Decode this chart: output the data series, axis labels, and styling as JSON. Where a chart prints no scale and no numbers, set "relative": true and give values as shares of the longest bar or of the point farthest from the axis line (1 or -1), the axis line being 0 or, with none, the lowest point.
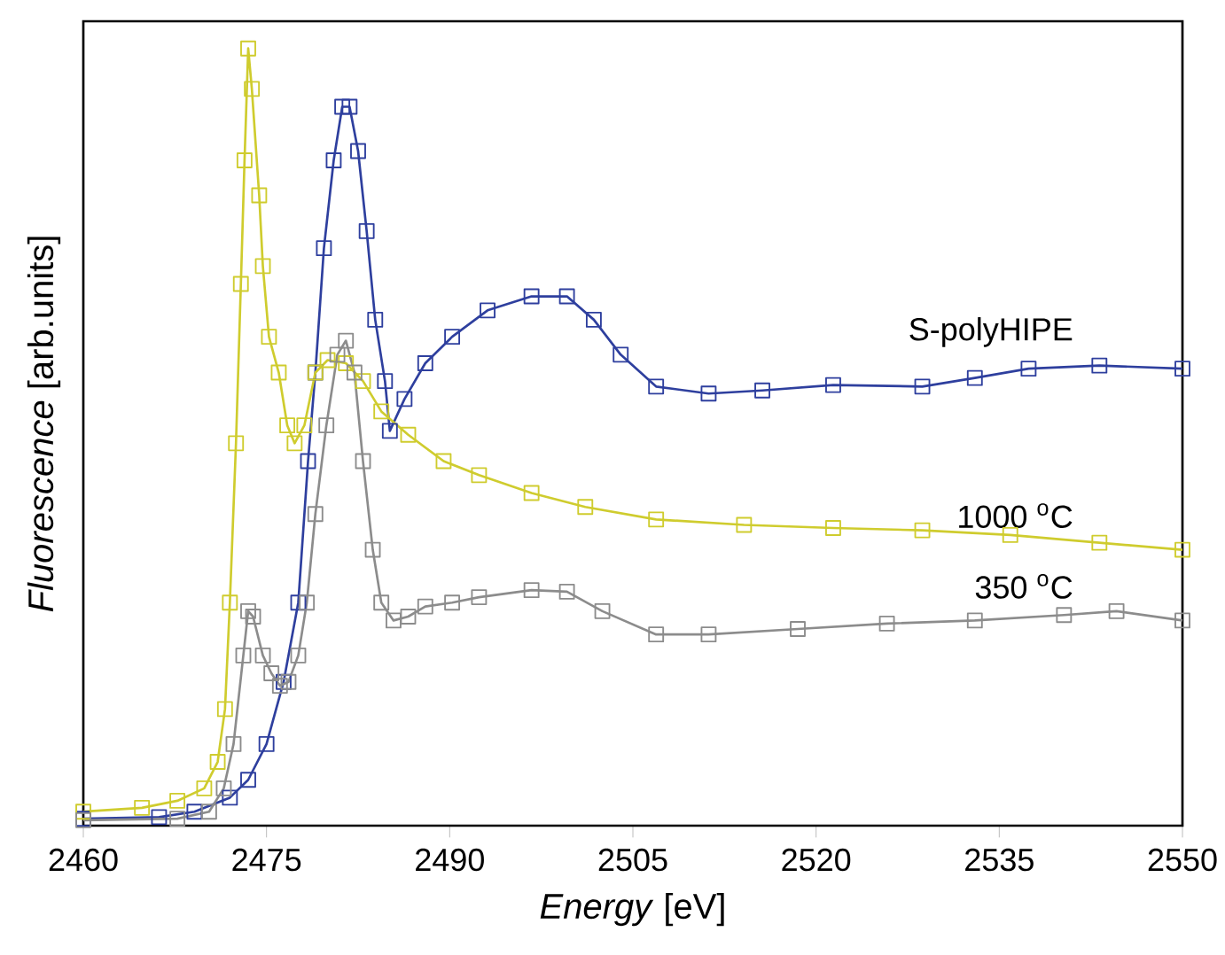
{
  "chart_data": {
    "type": "line",
    "relative": true,
    "xlabel": "*Energy* [eV]",
    "ylabel": "*Fluorescence* [arb.units]",
    "xlim": [
      2460,
      2550
    ],
    "xticks": [
      2460,
      2475,
      2490,
      2505,
      2520,
      2535,
      2550
    ],
    "marker": "square",
    "line_style": "solid",
    "tick_labels": "x",
    "series": [
      {
        "name": "S-polyHIPE",
        "color": "#2e3f9e",
        "x": [
          2460,
          2466.2,
          2469.1,
          2472.0,
          2473.5,
          2475.0,
          2476.4,
          2477.6,
          2478.4,
          2479.0,
          2479.7,
          2480.5,
          2481.2,
          2481.8,
          2482.5,
          2483.2,
          2483.9,
          2484.7,
          2485.1,
          2486.3,
          2488.0,
          2490.2,
          2493.1,
          2496.7,
          2499.6,
          2501.8,
          2504.0,
          2506.9,
          2511.2,
          2515.6,
          2521.4,
          2528.7,
          2533.0,
          2537.4,
          2543.2,
          2550
        ],
        "values": [
          0.009,
          0.011,
          0.018,
          0.036,
          0.059,
          0.105,
          0.185,
          0.287,
          0.469,
          0.583,
          0.743,
          0.856,
          0.925,
          0.925,
          0.868,
          0.765,
          0.651,
          0.572,
          0.508,
          0.549,
          0.595,
          0.629,
          0.663,
          0.681,
          0.681,
          0.651,
          0.606,
          0.565,
          0.556,
          0.56,
          0.567,
          0.565,
          0.576,
          0.588,
          0.592,
          0.588
        ]
      },
      {
        "name": "1000 $^{o}$C",
        "color": "#cfcc2e",
        "x": [
          2460,
          2464.8,
          2467.7,
          2469.9,
          2471.0,
          2471.6,
          2472.0,
          2472.5,
          2472.9,
          2473.2,
          2473.5,
          2473.8,
          2474.4,
          2474.7,
          2475.2,
          2476.0,
          2476.7,
          2477.3,
          2478.1,
          2479.0,
          2480.0,
          2481.5,
          2482.9,
          2484.4,
          2486.6,
          2489.5,
          2492.4,
          2496.7,
          2501.1,
          2506.9,
          2514.1,
          2521.4,
          2528.7,
          2535.9,
          2543.2,
          2550
        ],
        "values": [
          0.018,
          0.023,
          0.032,
          0.048,
          0.082,
          0.15,
          0.287,
          0.492,
          0.697,
          0.856,
          1,
          0.948,
          0.811,
          0.72,
          0.629,
          0.583,
          0.515,
          0.492,
          0.515,
          0.583,
          0.599,
          0.595,
          0.572,
          0.533,
          0.503,
          0.469,
          0.451,
          0.428,
          0.41,
          0.394,
          0.387,
          0.383,
          0.38,
          0.374,
          0.364,
          0.355
        ]
      },
      {
        "name": "350 $^{o}$C",
        "color": "#8c8c8c",
        "x": [
          2460,
          2467.7,
          2470.3,
          2471.5,
          2472.3,
          2473.1,
          2473.5,
          2473.9,
          2474.7,
          2475.4,
          2476.1,
          2476.8,
          2477.6,
          2478.3,
          2479.0,
          2479.9,
          2480.8,
          2481.5,
          2482.2,
          2482.9,
          2483.7,
          2484.4,
          2485.4,
          2486.6,
          2488.0,
          2490.2,
          2492.4,
          2496.7,
          2499.6,
          2502.5,
          2506.9,
          2511.2,
          2518.5,
          2525.8,
          2533.0,
          2540.3,
          2544.6,
          2550
        ],
        "values": [
          0.007,
          0.009,
          0.018,
          0.048,
          0.105,
          0.219,
          0.276,
          0.269,
          0.219,
          0.196,
          0.18,
          0.185,
          0.219,
          0.287,
          0.401,
          0.515,
          0.606,
          0.624,
          0.583,
          0.469,
          0.355,
          0.287,
          0.264,
          0.269,
          0.282,
          0.287,
          0.294,
          0.303,
          0.301,
          0.276,
          0.246,
          0.246,
          0.253,
          0.26,
          0.264,
          0.271,
          0.276,
          0.264
        ]
      }
    ]
  }
}
